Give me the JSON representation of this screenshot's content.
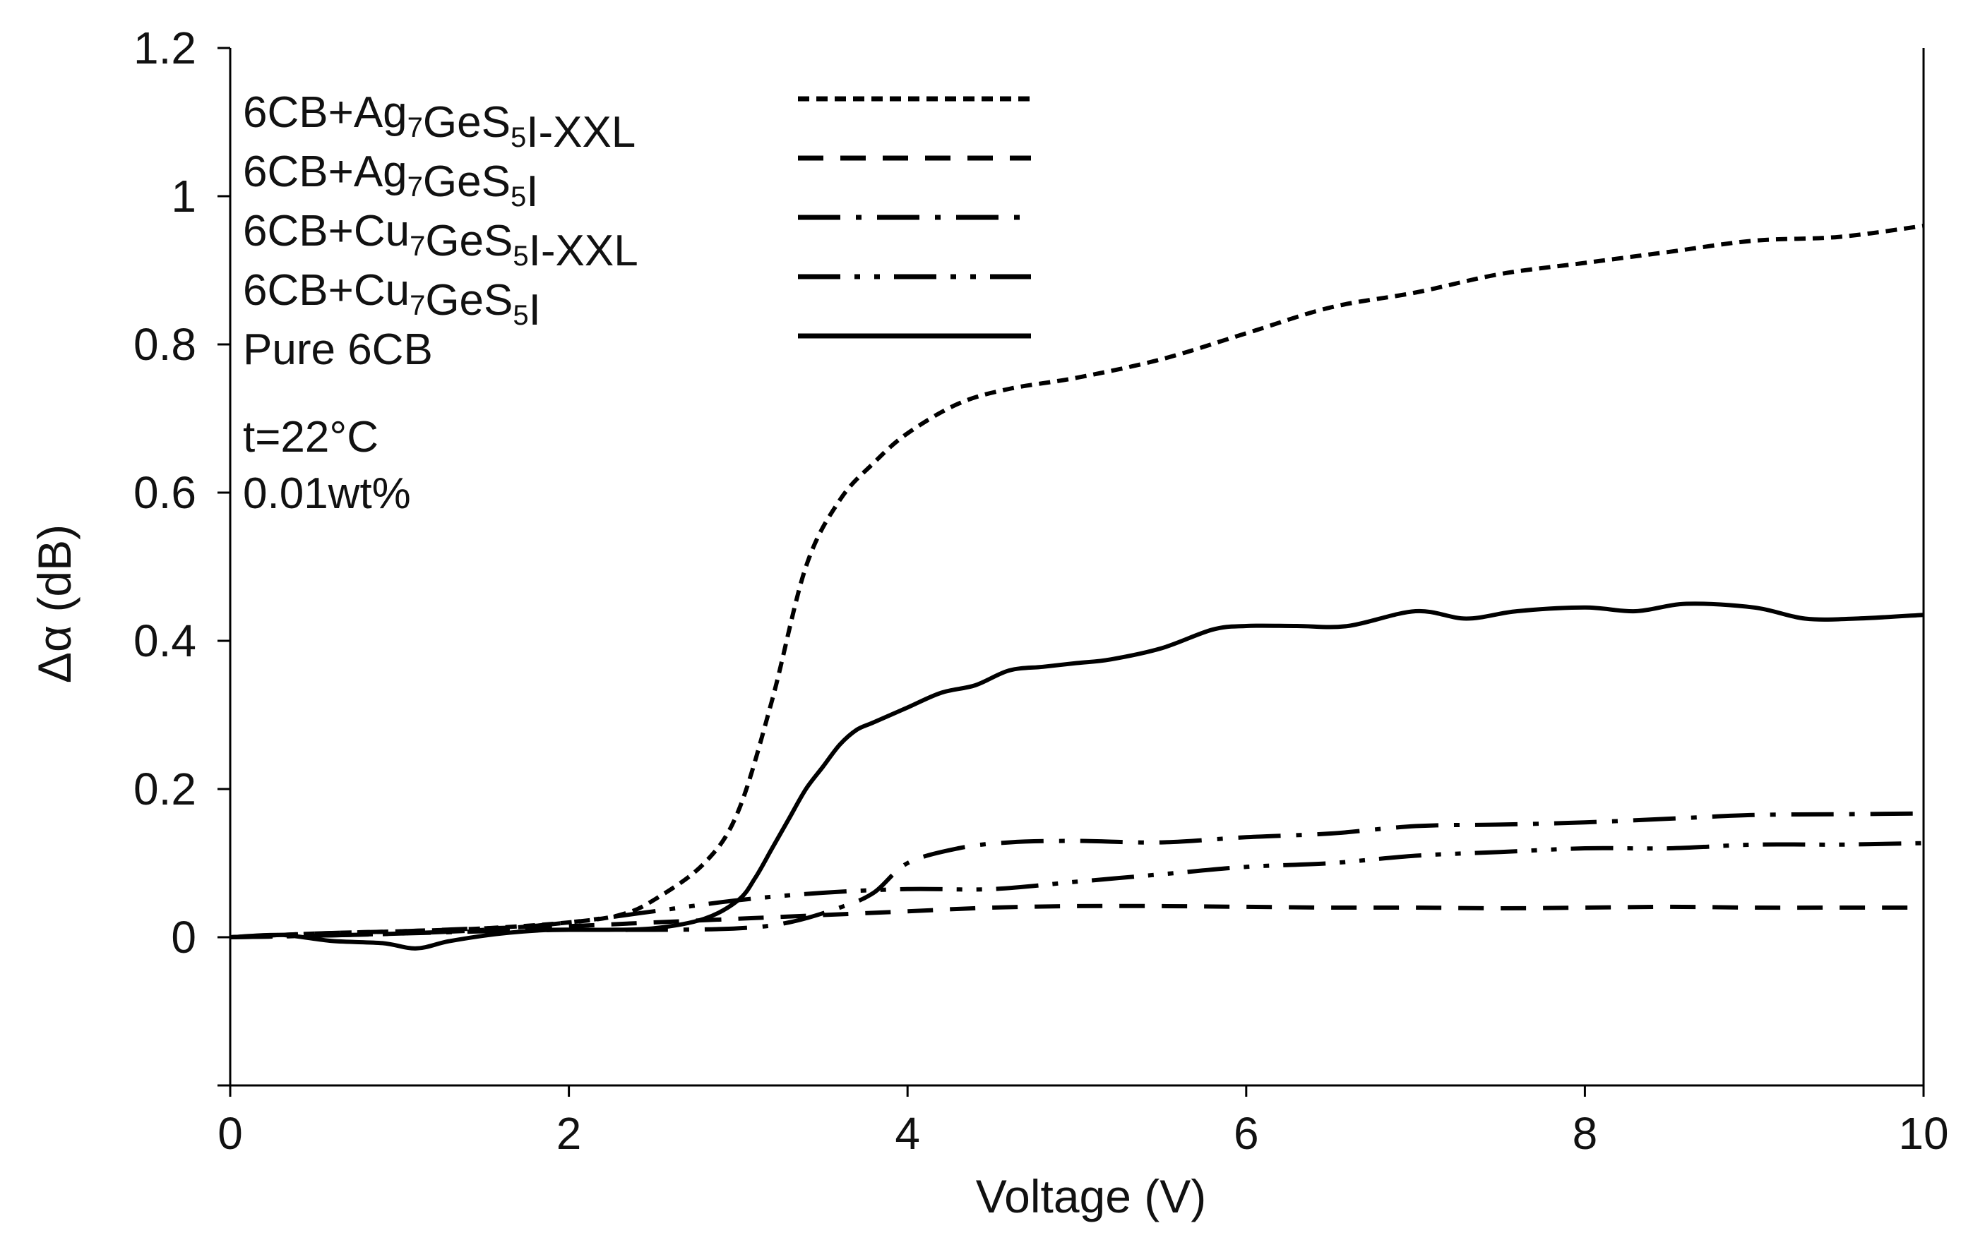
{
  "chart_data": {
    "type": "line",
    "title": "",
    "xlabel": "Voltage (V)",
    "ylabel": "Δα (dB)",
    "xlim": [
      0,
      10
    ],
    "ylim": [
      -0.2,
      1.2
    ],
    "xticks": [
      0,
      2,
      4,
      6,
      8,
      10
    ],
    "xtick_labels": [
      "0",
      "2",
      "4",
      "6",
      "8",
      "10"
    ],
    "yticks": [
      0,
      0.2,
      0.4,
      0.6,
      0.8,
      1,
      1.2
    ],
    "ytick_labels": [
      "0",
      "0.2",
      "0.4",
      "0.6",
      "0.8",
      "1",
      "1.2"
    ],
    "grid": false,
    "legend_position": "top-left",
    "annotations": [
      "t=22°C",
      "0.01wt%"
    ],
    "series": [
      {
        "name": "6CB+Ag7GeS5I-XXL",
        "legend": {
          "prefix": "6CB+Ag",
          "sub1": "7",
          "mid": "GeS",
          "sub2": "5",
          "suffix": "I-XXL"
        },
        "dash": "short",
        "x": [
          0,
          0.5,
          1,
          1.5,
          2,
          2.3,
          2.5,
          2.8,
          3.0,
          3.2,
          3.4,
          3.6,
          3.8,
          4.0,
          4.3,
          4.6,
          5.0,
          5.5,
          6.0,
          6.5,
          7.0,
          7.5,
          8.0,
          8.5,
          9.0,
          9.5,
          10.0
        ],
        "y": [
          0,
          0.005,
          0.008,
          0.012,
          0.02,
          0.03,
          0.05,
          0.1,
          0.17,
          0.32,
          0.5,
          0.59,
          0.64,
          0.68,
          0.72,
          0.74,
          0.755,
          0.78,
          0.815,
          0.85,
          0.87,
          0.895,
          0.91,
          0.925,
          0.94,
          0.945,
          0.96
        ]
      },
      {
        "name": "6CB+Ag7GeS5I",
        "legend": {
          "prefix": "6CB+Ag",
          "sub1": "7",
          "mid": "GeS",
          "sub2": "5",
          "suffix": "I"
        },
        "dash": "long",
        "x": [
          0,
          0.5,
          1,
          1.5,
          2,
          2.5,
          3,
          3.5,
          4,
          4.5,
          5,
          5.5,
          6,
          6.5,
          7,
          7.5,
          8,
          8.5,
          9,
          9.5,
          10
        ],
        "y": [
          0,
          0.005,
          0.008,
          0.012,
          0.015,
          0.02,
          0.025,
          0.03,
          0.035,
          0.04,
          0.042,
          0.042,
          0.041,
          0.04,
          0.04,
          0.039,
          0.04,
          0.041,
          0.04,
          0.04,
          0.04
        ]
      },
      {
        "name": "6CB+Cu7GeS5I-XXL",
        "legend": {
          "prefix": "6CB+Cu",
          "sub1": "7",
          "mid": "GeS",
          "sub2": "5",
          "suffix": "I-XXL"
        },
        "dash": "dashdot",
        "x": [
          0,
          0.5,
          1,
          1.5,
          2,
          2.5,
          3,
          3.3,
          3.6,
          3.8,
          4.0,
          4.3,
          4.6,
          5.0,
          5.5,
          6.0,
          6.5,
          7.0,
          7.5,
          8.0,
          8.5,
          9.0,
          9.5,
          10.0
        ],
        "y": [
          0,
          0.002,
          0.005,
          0.008,
          0.01,
          0.01,
          0.012,
          0.02,
          0.04,
          0.06,
          0.1,
          0.12,
          0.128,
          0.13,
          0.128,
          0.135,
          0.14,
          0.15,
          0.152,
          0.155,
          0.16,
          0.165,
          0.166,
          0.167
        ]
      },
      {
        "name": "6CB+Cu7GeS5I",
        "legend": {
          "prefix": "6CB+Cu",
          "sub1": "7",
          "mid": "GeS",
          "sub2": "5",
          "suffix": "I"
        },
        "dash": "dashdotdot",
        "x": [
          0,
          0.5,
          1,
          1.5,
          2,
          2.5,
          3,
          3.5,
          4,
          4.5,
          5,
          5.5,
          6,
          6.5,
          7,
          7.5,
          8,
          8.5,
          9,
          9.5,
          10
        ],
        "y": [
          0,
          0.002,
          0.005,
          0.01,
          0.02,
          0.035,
          0.05,
          0.06,
          0.065,
          0.065,
          0.075,
          0.085,
          0.095,
          0.1,
          0.11,
          0.115,
          0.12,
          0.12,
          0.125,
          0.125,
          0.127
        ]
      },
      {
        "name": "Pure 6CB",
        "legend": {
          "prefix": "Pure 6CB",
          "sub1": "",
          "mid": "",
          "sub2": "",
          "suffix": ""
        },
        "dash": "solid",
        "x": [
          0,
          0.3,
          0.6,
          0.9,
          1.1,
          1.3,
          1.6,
          1.9,
          2.2,
          2.5,
          2.8,
          3.0,
          3.1,
          3.2,
          3.3,
          3.4,
          3.5,
          3.6,
          3.7,
          3.8,
          4.0,
          4.2,
          4.4,
          4.6,
          4.8,
          5.0,
          5.2,
          5.5,
          5.8,
          6.0,
          6.3,
          6.6,
          7.0,
          7.3,
          7.6,
          8.0,
          8.3,
          8.6,
          9.0,
          9.3,
          9.6,
          10.0
        ],
        "y": [
          0,
          0.003,
          -0.005,
          -0.008,
          -0.015,
          -0.005,
          0.005,
          0.01,
          0.01,
          0.012,
          0.025,
          0.05,
          0.08,
          0.12,
          0.16,
          0.2,
          0.23,
          0.26,
          0.28,
          0.29,
          0.31,
          0.33,
          0.34,
          0.36,
          0.365,
          0.37,
          0.375,
          0.39,
          0.415,
          0.42,
          0.42,
          0.42,
          0.44,
          0.43,
          0.44,
          0.445,
          0.44,
          0.45,
          0.445,
          0.43,
          0.43,
          0.435
        ]
      }
    ]
  }
}
